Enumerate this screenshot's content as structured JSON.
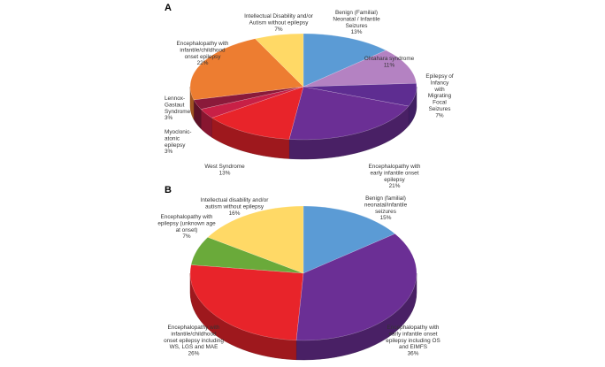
{
  "chart_data": [
    {
      "type": "pie",
      "panel": "A",
      "slices": [
        {
          "label_lines": [
            "Benign (Familial)",
            "Neonatal / Infantile",
            "Seizures",
            "13%"
          ],
          "value": 13,
          "color": "#5b9bd5"
        },
        {
          "label_lines": [
            "Ohtahara syndrome",
            "11%"
          ],
          "value": 11,
          "color": "#b482c2"
        },
        {
          "label_lines": [
            "Epilepsy of",
            "Infancy",
            "with",
            "Migrating",
            "Focal",
            "Seizures",
            "7%"
          ],
          "value": 7,
          "color": "#5e2d91"
        },
        {
          "label_lines": [
            "Encephalopathy with",
            "early infantile onset",
            "epilepsy",
            "21%"
          ],
          "value": 21,
          "color": "#6b2f95"
        },
        {
          "label_lines": [
            "West Syndrome",
            "13%"
          ],
          "value": 13,
          "color": "#e8242a"
        },
        {
          "label_lines": [
            "Myoclonic-",
            "atonic",
            "epilepsy",
            "3%"
          ],
          "value": 3,
          "color": "#c82046"
        },
        {
          "label_lines": [
            "Lennox-",
            "Gastaut",
            "Syndrome",
            "3%"
          ],
          "value": 3,
          "color": "#8a1a3a"
        },
        {
          "label_lines": [
            "Encephalopathy with",
            "infantile/childhood",
            "onset epilepsy",
            "22%"
          ],
          "value": 22,
          "color": "#ed7d31"
        },
        {
          "label_lines": [
            "Intellectual Disability and/or",
            "Autism without epilepsy",
            "7%"
          ],
          "value": 7,
          "color": "#ffd966"
        }
      ]
    },
    {
      "type": "pie",
      "panel": "B",
      "slices": [
        {
          "label_lines": [
            "Benign (familial)",
            "neonatal/infantile",
            "seizures",
            "15%"
          ],
          "value": 15,
          "color": "#5b9bd5"
        },
        {
          "label_lines": [
            "Encephalopathy with",
            "early infantile onset",
            "epilepsy including OS",
            "and EIMFS",
            "36%"
          ],
          "value": 36,
          "color": "#6b2f95"
        },
        {
          "label_lines": [
            "Encephalopathy with",
            "infantile/childhood",
            "onset epilepsy including",
            "WS, LGS and MAE",
            "26%"
          ],
          "value": 26,
          "color": "#e8242a"
        },
        {
          "label_lines": [
            "Encephalopathy with",
            "epilepsy (unknown age",
            "at onset)",
            "7%"
          ],
          "value": 7,
          "color": "#6aaa3a"
        },
        {
          "label_lines": [
            "Intellectual disability and/or",
            "autism without epilepsy",
            "16%"
          ],
          "value": 16,
          "color": "#ffd966"
        }
      ]
    }
  ]
}
